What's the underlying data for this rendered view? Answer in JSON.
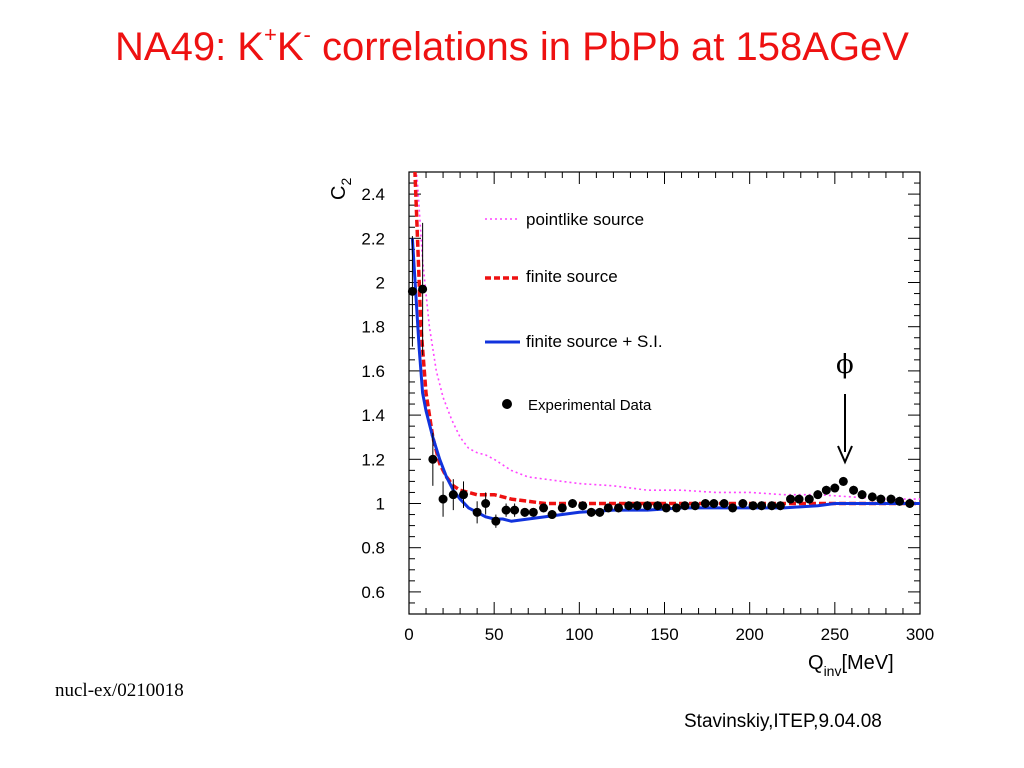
{
  "slide": {
    "title_main": "NA49: K",
    "title_sup1": "+",
    "title_mid": "K",
    "title_sup2": "-",
    "title_end": " correlations in PbPb at 158AGeV",
    "reference": "nucl-ex/0210018",
    "author": "Stavinskiy,ITEP,9.04.08"
  },
  "chart_data": {
    "type": "line",
    "ylabel_main": "C",
    "ylabel_sub": "2",
    "xlabel_main": "Q",
    "xlabel_sub": "inv",
    "xlabel_unit": "[MeV]",
    "xlim": [
      0,
      300
    ],
    "ylim": [
      0.5,
      2.5
    ],
    "x_ticks": [
      0,
      50,
      100,
      150,
      200,
      250,
      300
    ],
    "y_ticks": [
      0.6,
      0.8,
      1,
      1.2,
      1.4,
      1.6,
      1.8,
      2,
      2.2,
      2.4
    ],
    "x_tick_labels": [
      "0",
      "50",
      "100",
      "150",
      "200",
      "250",
      "300"
    ],
    "y_tick_labels": [
      "0.6",
      "0.8",
      "1",
      "1.2",
      "1.4",
      "1.6",
      "1.8",
      "2",
      "2.2",
      "2.4"
    ],
    "annotation": {
      "label": "ϕ",
      "x": 255,
      "y": 1.1
    },
    "legend_position": "top-right",
    "series": [
      {
        "name": "pointlike source",
        "style": "dotted",
        "color": "#ff44ff",
        "x": [
          3,
          5,
          8,
          12,
          16,
          20,
          25,
          30,
          35,
          40,
          45,
          50,
          60,
          70,
          80,
          90,
          100,
          120,
          140,
          160,
          180,
          200,
          220,
          240,
          260,
          280,
          300
        ],
        "y": [
          2.6,
          2.45,
          2.1,
          1.8,
          1.6,
          1.48,
          1.38,
          1.3,
          1.25,
          1.23,
          1.22,
          1.2,
          1.15,
          1.12,
          1.11,
          1.1,
          1.09,
          1.08,
          1.06,
          1.06,
          1.05,
          1.05,
          1.04,
          1.04,
          1.03,
          1.02,
          1.02
        ]
      },
      {
        "name": "finite source",
        "style": "dashed",
        "color": "#ee1111",
        "x": [
          3,
          4,
          5,
          7,
          10,
          14,
          18,
          22,
          26,
          30,
          35,
          40,
          50,
          60,
          70,
          80,
          90,
          100,
          120,
          140,
          160,
          180,
          200,
          220,
          240,
          260,
          280,
          300
        ],
        "y": [
          2.6,
          2.4,
          2.2,
          1.8,
          1.5,
          1.3,
          1.18,
          1.12,
          1.08,
          1.06,
          1.05,
          1.04,
          1.04,
          1.02,
          1.01,
          1.0,
          1.0,
          1.0,
          1.0,
          1.0,
          1.0,
          1.0,
          1.0,
          1.0,
          1.0,
          1.0,
          1.0,
          1.0
        ]
      },
      {
        "name": "finite source + S.I.",
        "style": "solid",
        "color": "#1133dd",
        "x": [
          2,
          4,
          6,
          8,
          10,
          14,
          18,
          22,
          26,
          30,
          35,
          40,
          45,
          50,
          55,
          60,
          70,
          80,
          90,
          100,
          120,
          140,
          160,
          180,
          200,
          220,
          240,
          250,
          260,
          280,
          300
        ],
        "y": [
          2.2,
          1.95,
          1.7,
          1.5,
          1.42,
          1.3,
          1.2,
          1.12,
          1.06,
          1.02,
          0.98,
          0.96,
          0.94,
          0.93,
          0.93,
          0.92,
          0.93,
          0.94,
          0.95,
          0.96,
          0.97,
          0.97,
          0.98,
          0.98,
          0.98,
          0.98,
          0.99,
          1.0,
          1.0,
          1.0,
          1.0
        ]
      },
      {
        "name": "Experimental Data",
        "style": "markers",
        "color": "#000000",
        "x": [
          2,
          8,
          14,
          20,
          26,
          32,
          40,
          45,
          51,
          57,
          62,
          68,
          73,
          79,
          84,
          90,
          96,
          102,
          107,
          112,
          117,
          123,
          129,
          134,
          140,
          146,
          151,
          157,
          162,
          168,
          174,
          179,
          185,
          190,
          196,
          202,
          207,
          213,
          218,
          224,
          229,
          235,
          240,
          245,
          250,
          255,
          261,
          266,
          272,
          277,
          283,
          288,
          294
        ],
        "y": [
          1.96,
          1.97,
          1.2,
          1.02,
          1.04,
          1.04,
          0.96,
          1.0,
          0.92,
          0.97,
          0.97,
          0.96,
          0.96,
          0.98,
          0.95,
          0.98,
          1.0,
          0.99,
          0.96,
          0.96,
          0.98,
          0.98,
          0.99,
          0.99,
          0.99,
          0.99,
          0.98,
          0.98,
          0.99,
          0.99,
          1.0,
          1.0,
          1.0,
          0.98,
          1.0,
          0.99,
          0.99,
          0.99,
          0.99,
          1.02,
          1.02,
          1.02,
          1.04,
          1.06,
          1.07,
          1.1,
          1.06,
          1.04,
          1.03,
          1.02,
          1.02,
          1.01,
          1.0
        ],
        "err": [
          0.25,
          0.3,
          0.12,
          0.08,
          0.07,
          0.06,
          0.05,
          0.05,
          0.03,
          0.03,
          0.03,
          0.02,
          0.02,
          0.02,
          0.02,
          0.02,
          0.02,
          0.02,
          0.02,
          0.02,
          0.02,
          0.02,
          0.02,
          0.02,
          0.02,
          0.02,
          0.02,
          0.02,
          0.02,
          0.02,
          0.02,
          0.02,
          0.02,
          0.02,
          0.02,
          0.02,
          0.02,
          0.02,
          0.02,
          0.02,
          0.02,
          0.02,
          0.02,
          0.02,
          0.02,
          0.02,
          0.02,
          0.02,
          0.02,
          0.02,
          0.02,
          0.02,
          0.02
        ]
      }
    ]
  }
}
